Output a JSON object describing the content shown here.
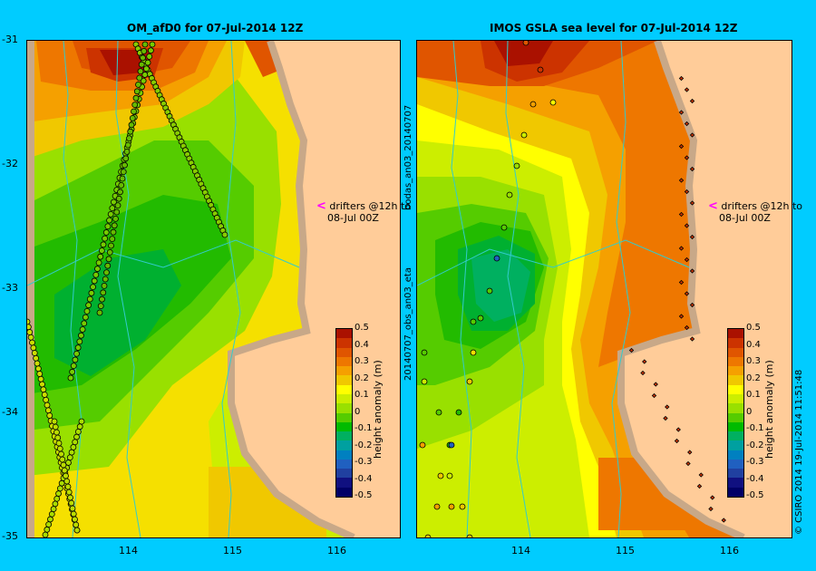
{
  "left": {
    "title": "OM_afD0 for 07-Jul-2014 12Z",
    "drifters_line1": "drifters @12h to",
    "drifters_line2": "08-Jul 00Z"
  },
  "right": {
    "title": "IMOS GSLA sea level  for 07-Jul-2014 12Z",
    "drifters_line1": "drifters @12h to",
    "drifters_line2": "08-Jul 00Z",
    "side_label_top": "bodas_an03_20140707",
    "side_label_bottom": "20140707_obs_an03_eta"
  },
  "yticks": [
    "-31",
    "-32",
    "-33",
    "-34",
    "-35"
  ],
  "xticks": [
    "114",
    "115",
    "116"
  ],
  "colorbar": {
    "title": "height anomaly (m)",
    "labels": [
      "0.5",
      "0.4",
      "0.3",
      "0.2",
      "0.1",
      "0",
      "-0.1",
      "-0.2",
      "-0.3",
      "-0.4",
      "-0.5"
    ],
    "colors": [
      "#aa1100",
      "#cc3300",
      "#e05500",
      "#ee7700",
      "#f5a000",
      "#f0c800",
      "#ffff00",
      "#ccee00",
      "#99e000",
      "#55cc00",
      "#00bb00",
      "#00b060",
      "#00a0a0",
      "#0080c0",
      "#2060c0",
      "#2040a0",
      "#101080",
      "#000066"
    ]
  },
  "credit": "© CSIRO 2014   19-Jul-2014 11:51:48"
}
